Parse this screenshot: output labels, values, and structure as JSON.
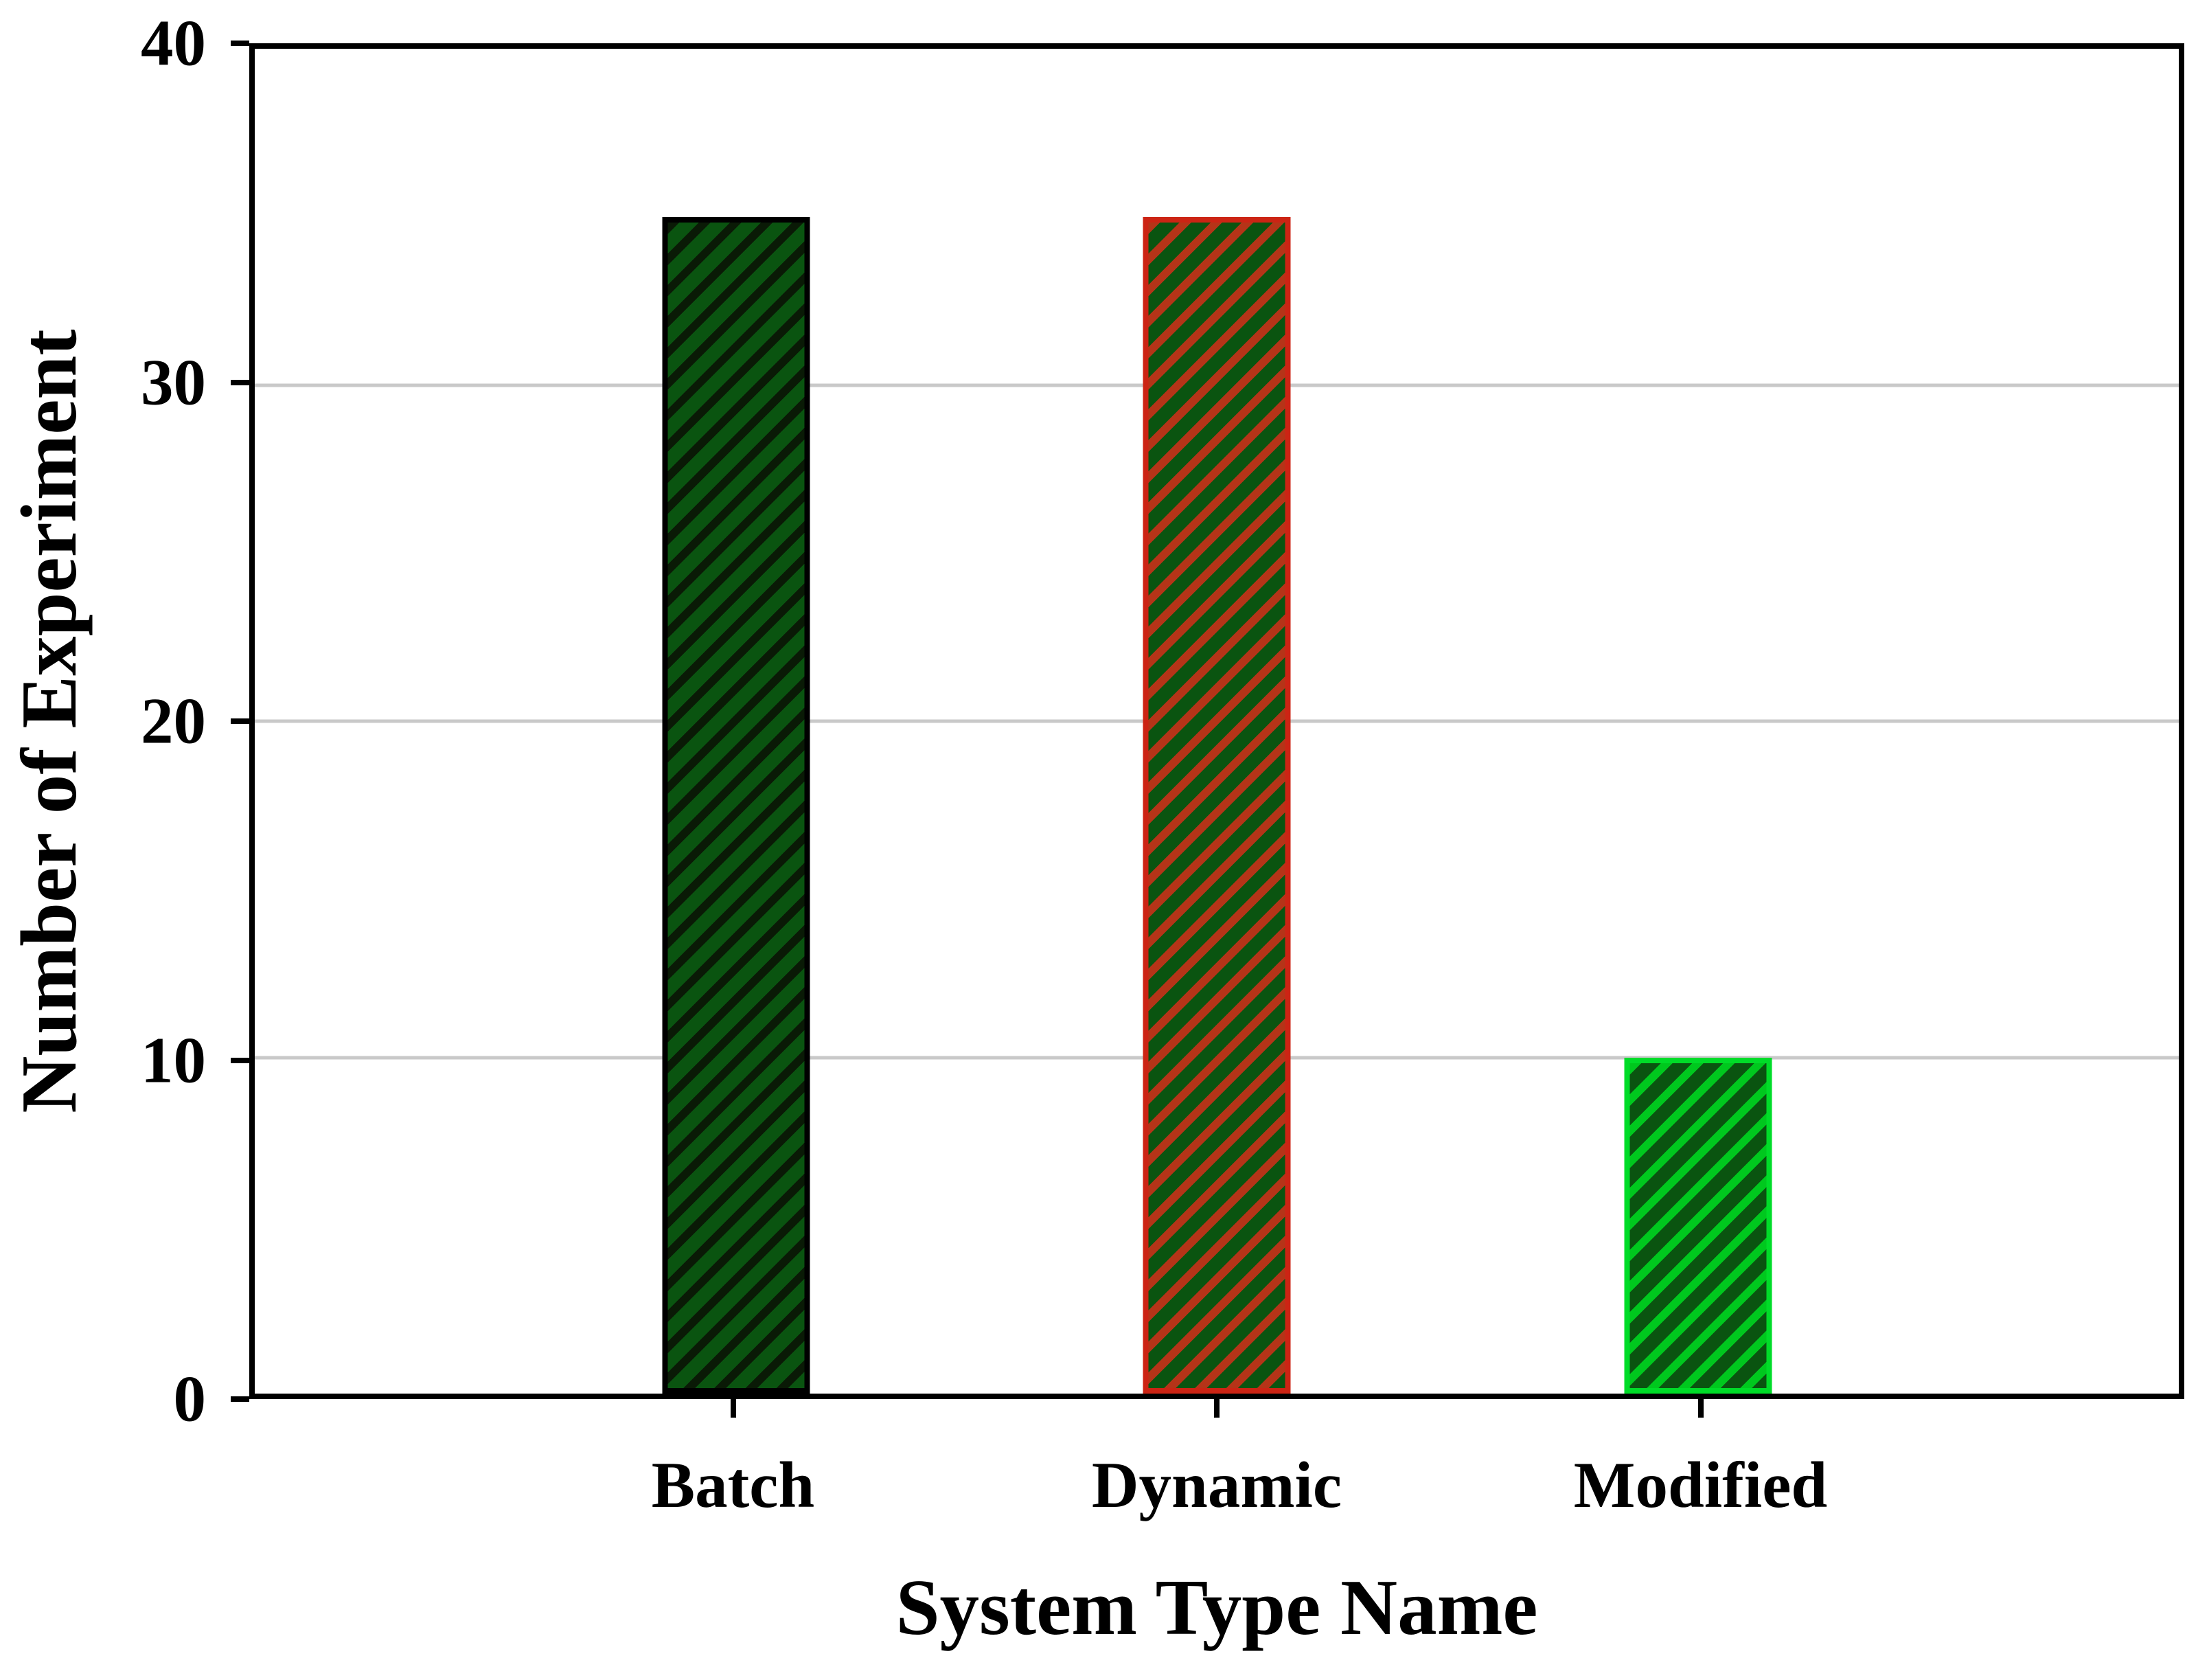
{
  "chart_data": {
    "type": "bar",
    "title": "",
    "xlabel": "System Type Name",
    "ylabel": "Number of Experiment",
    "categories": [
      "Batch",
      "Dynamic",
      "Modified"
    ],
    "values": [
      35,
      35,
      10
    ],
    "ylim": [
      0,
      40
    ],
    "yticks": [
      0,
      10,
      20,
      30,
      40
    ],
    "gridline_values": [
      10,
      20,
      30
    ],
    "grid": "horizontal-light-gray",
    "legend": "none",
    "axis_frame_color": "#000000",
    "gridline_color": "#c9c9c9",
    "background_color": "#ffffff",
    "text_color": "#000000",
    "series_styles": [
      {
        "name": "Batch",
        "fill_color": "#0a5410",
        "hatch": "/",
        "hatch_color": "#0a1a06",
        "edge_color": "#000000"
      },
      {
        "name": "Dynamic",
        "fill_color": "#0a5410",
        "hatch": "/",
        "hatch_color": "#b53418",
        "edge_color": "#cc2414"
      },
      {
        "name": "Modified",
        "fill_color": "#0a5410",
        "hatch": "/",
        "hatch_color": "#00c81e",
        "edge_color": "#00dc28"
      }
    ]
  }
}
